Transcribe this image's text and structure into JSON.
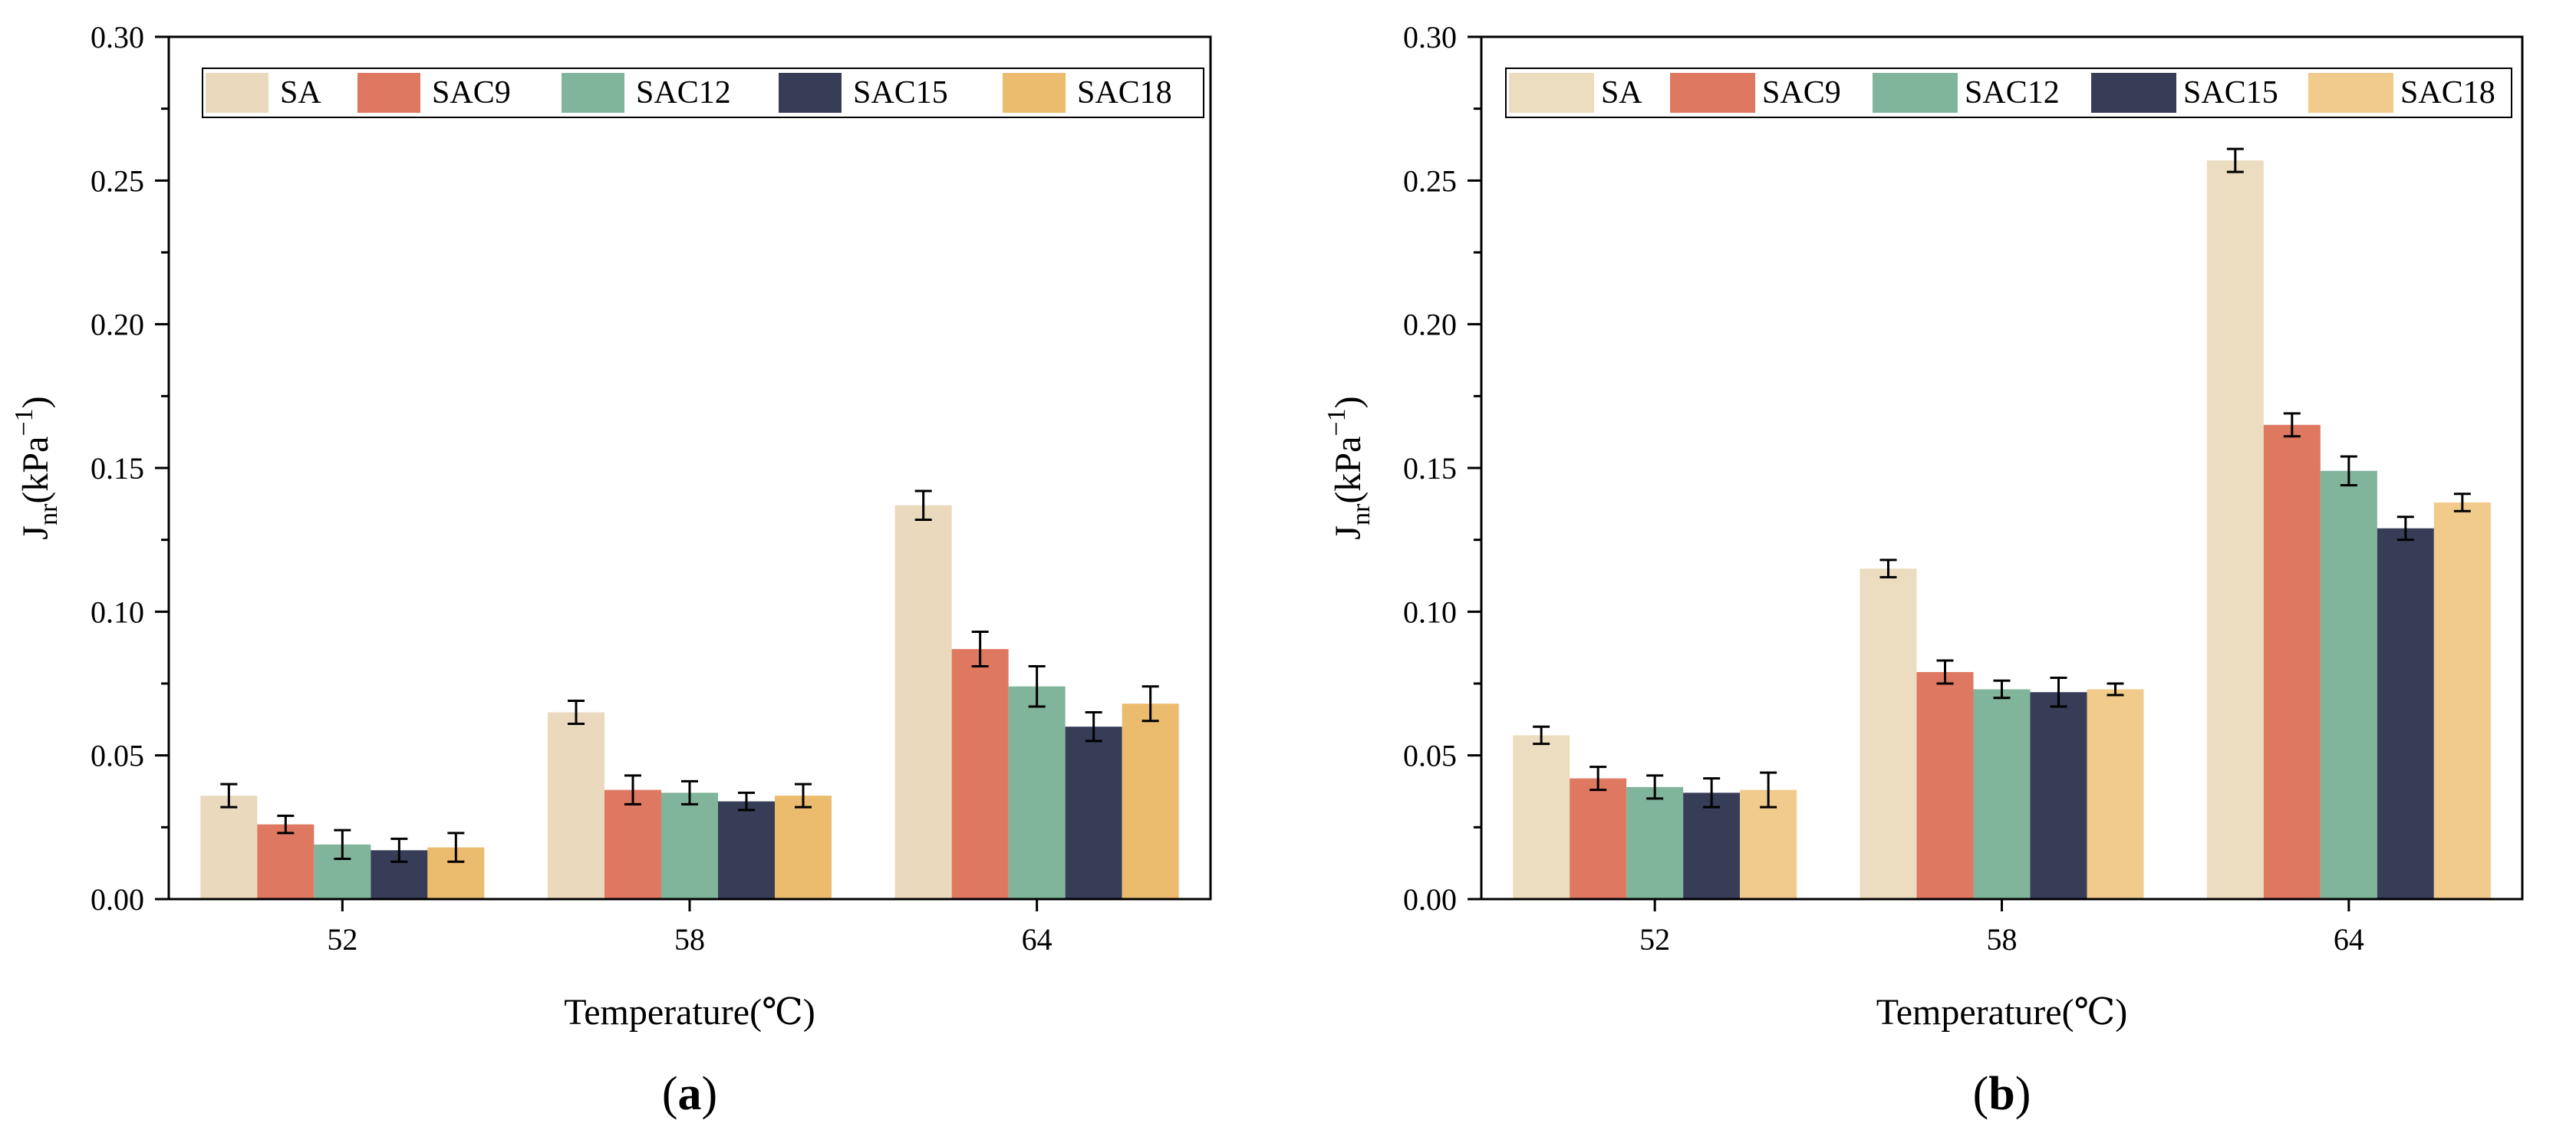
{
  "colors": {
    "panel_a": [
      "#ead9bd",
      "#df7860",
      "#80b49b",
      "#373c57",
      "#ebbb6e"
    ],
    "panel_b": [
      "#ecdcc0",
      "#df7860",
      "#80b49b",
      "#373c57",
      "#f0cb8c"
    ],
    "axis": "#000000",
    "error_bar": "#000000"
  },
  "chart_data": [
    {
      "type": "bar",
      "panel_label": "a",
      "xlabel": "Temperature(℃)",
      "ylabel": {
        "base": "J",
        "sub": "nr",
        "unit_open": "(kPa",
        "sup": "−1",
        "unit_close": ")"
      },
      "categories": [
        "52",
        "58",
        "64"
      ],
      "ylim": [
        0,
        0.3
      ],
      "yticks": [
        "0.00",
        "0.05",
        "0.10",
        "0.15",
        "0.20",
        "0.25",
        "0.30"
      ],
      "legend_position": "top-left",
      "series": [
        {
          "name": "SA",
          "values": [
            0.036,
            0.065,
            0.137
          ],
          "errors": [
            0.004,
            0.004,
            0.005
          ]
        },
        {
          "name": "SAC9",
          "values": [
            0.026,
            0.038,
            0.087
          ],
          "errors": [
            0.003,
            0.005,
            0.006
          ]
        },
        {
          "name": "SAC12",
          "values": [
            0.019,
            0.037,
            0.074
          ],
          "errors": [
            0.005,
            0.004,
            0.007
          ]
        },
        {
          "name": "SAC15",
          "values": [
            0.017,
            0.034,
            0.06
          ],
          "errors": [
            0.004,
            0.003,
            0.005
          ]
        },
        {
          "name": "SAC18",
          "values": [
            0.018,
            0.036,
            0.068
          ],
          "errors": [
            0.005,
            0.004,
            0.006
          ]
        }
      ]
    },
    {
      "type": "bar",
      "panel_label": "b",
      "xlabel": "Temperature(℃)",
      "ylabel": {
        "base": "J",
        "sub": "nr",
        "unit_open": "(kPa",
        "sup": "−1",
        "unit_close": ")"
      },
      "categories": [
        "52",
        "58",
        "64"
      ],
      "ylim": [
        0,
        0.3
      ],
      "yticks": [
        "0.00",
        "0.05",
        "0.10",
        "0.15",
        "0.20",
        "0.25",
        "0.30"
      ],
      "legend_position": "top-left",
      "series": [
        {
          "name": "SA",
          "values": [
            0.057,
            0.115,
            0.257
          ],
          "errors": [
            0.003,
            0.003,
            0.004
          ]
        },
        {
          "name": "SAC9",
          "values": [
            0.042,
            0.079,
            0.165
          ],
          "errors": [
            0.004,
            0.004,
            0.004
          ]
        },
        {
          "name": "SAC12",
          "values": [
            0.039,
            0.073,
            0.149
          ],
          "errors": [
            0.004,
            0.003,
            0.005
          ]
        },
        {
          "name": "SAC15",
          "values": [
            0.037,
            0.072,
            0.129
          ],
          "errors": [
            0.005,
            0.005,
            0.004
          ]
        },
        {
          "name": "SAC18",
          "values": [
            0.038,
            0.073,
            0.138
          ],
          "errors": [
            0.006,
            0.002,
            0.003
          ]
        }
      ]
    }
  ]
}
